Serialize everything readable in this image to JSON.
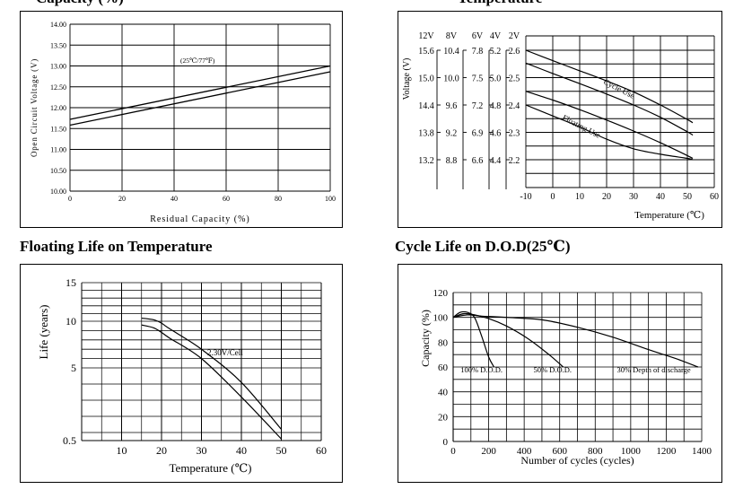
{
  "headings": {
    "top_left": "Capacity (%)",
    "top_right": "Temperature",
    "bottom_left": "Floating Life on Temperature",
    "bottom_right": "Cycle Life on D.O.D(25℃)"
  },
  "chart_data": [
    {
      "type": "line",
      "title": "",
      "xlabel": "Residual Capacity (%)",
      "ylabel": "Open Circuit Voltage (V)",
      "xlim": [
        0,
        100
      ],
      "ylim": [
        10.0,
        14.0
      ],
      "xticks": [
        "0",
        "20",
        "40",
        "60",
        "80",
        "100"
      ],
      "yticks": [
        "10.00",
        "10.50",
        "11.00",
        "11.50",
        "12.00",
        "12.50",
        "13.00",
        "13.50",
        "14.00"
      ],
      "annotation": "(25℃/77℉)",
      "grid": true,
      "series": [
        {
          "x": [
            0,
            100
          ],
          "y": [
            11.72,
            13.0
          ]
        },
        {
          "x": [
            0,
            100
          ],
          "y": [
            11.58,
            12.86
          ]
        }
      ]
    },
    {
      "type": "line",
      "title": "",
      "xlabel": "Temperature (℃)",
      "ylabel": "Voltage (V)",
      "xlim": [
        -10,
        60
      ],
      "xticks": [
        "-10",
        "0",
        "10",
        "20",
        "30",
        "40",
        "50",
        "60"
      ],
      "y_columns": [
        {
          "header": "12V",
          "ticks": [
            "15.6",
            "15.0",
            "14.4",
            "13.8",
            "13.2"
          ]
        },
        {
          "header": "8V",
          "ticks": [
            "10.4",
            "10.0",
            "9.6",
            "9.2",
            "8.8"
          ]
        },
        {
          "header": "6V",
          "ticks": [
            "7.8",
            "7.5",
            "7.2",
            "6.9",
            "6.6"
          ]
        },
        {
          "header": "4V",
          "ticks": [
            "5.2",
            "5.0",
            "4.8",
            "4.6",
            "4.4"
          ]
        },
        {
          "header": "2V",
          "ticks": [
            "2.6",
            "2.5",
            "2.4",
            "2.3",
            "2.2"
          ]
        }
      ],
      "ylim": [
        2.12,
        2.6
      ],
      "grid": true,
      "series": [
        {
          "name": "Cycle Use",
          "x": [
            -10,
            0,
            10,
            20,
            30,
            40,
            50,
            52
          ],
          "y": [
            2.6,
            2.562,
            2.525,
            2.488,
            2.448,
            2.4,
            2.347,
            2.335
          ]
        },
        {
          "name": "",
          "x": [
            -10,
            0,
            10,
            20,
            30,
            40,
            50,
            52
          ],
          "y": [
            2.553,
            2.515,
            2.478,
            2.44,
            2.4,
            2.355,
            2.302,
            2.29
          ]
        },
        {
          "name": "Floating Use",
          "x": [
            -10,
            0,
            10,
            20,
            30,
            40,
            50,
            52
          ],
          "y": [
            2.45,
            2.418,
            2.383,
            2.345,
            2.305,
            2.262,
            2.215,
            2.205
          ]
        },
        {
          "name": "",
          "x": [
            -10,
            0,
            10,
            20,
            30,
            40,
            50,
            52
          ],
          "y": [
            2.4,
            2.36,
            2.32,
            2.275,
            2.24,
            2.22,
            2.205,
            2.2
          ]
        }
      ]
    },
    {
      "type": "line",
      "title": "",
      "xlabel": "Temperature (℃)",
      "ylabel": "Life (years)",
      "xlim": [
        0,
        60
      ],
      "xticks": [
        "10",
        "20",
        "30",
        "40",
        "50",
        "60"
      ],
      "yticks": [
        "15",
        "10",
        "5",
        "0.5"
      ],
      "annotation": "2.30V/Cell",
      "grid": true,
      "series": [
        {
          "x": [
            15,
            18,
            20,
            22,
            30,
            40,
            50
          ],
          "y": [
            10.4,
            10.2,
            9.8,
            9.2,
            7.0,
            4.1,
            1.2
          ]
        },
        {
          "x": [
            15,
            18,
            20,
            22,
            30,
            40,
            50
          ],
          "y": [
            9.6,
            9.3,
            8.8,
            8.2,
            6.0,
            3.2,
            0.6
          ]
        }
      ]
    },
    {
      "type": "line",
      "title": "",
      "xlabel": "Number of cycles (cycles)",
      "ylabel": "Capacity (%)",
      "xlim": [
        0,
        1400
      ],
      "ylim": [
        0,
        120
      ],
      "xticks": [
        "0",
        "200",
        "400",
        "600",
        "800",
        "1000",
        "1200",
        "1400"
      ],
      "yticks": [
        "0",
        "20",
        "40",
        "60",
        "80",
        "100",
        "120"
      ],
      "grid": true,
      "series": [
        {
          "name": "100% D.O.D.",
          "x": [
            0,
            40,
            80,
            120,
            160,
            200,
            230
          ],
          "y": [
            100,
            104,
            104,
            100,
            85,
            68,
            60
          ]
        },
        {
          "name": "50% D.O.D.",
          "x": [
            0,
            60,
            120,
            200,
            300,
            420,
            540,
            620
          ],
          "y": [
            100,
            103,
            102,
            99,
            93,
            83,
            70,
            60
          ]
        },
        {
          "name": "30% Depth of discharge",
          "x": [
            0,
            80,
            160,
            300,
            500,
            700,
            900,
            1100,
            1250,
            1380
          ],
          "y": [
            100,
            102,
            101,
            100,
            98,
            92,
            84,
            74,
            67,
            60
          ]
        }
      ]
    }
  ]
}
